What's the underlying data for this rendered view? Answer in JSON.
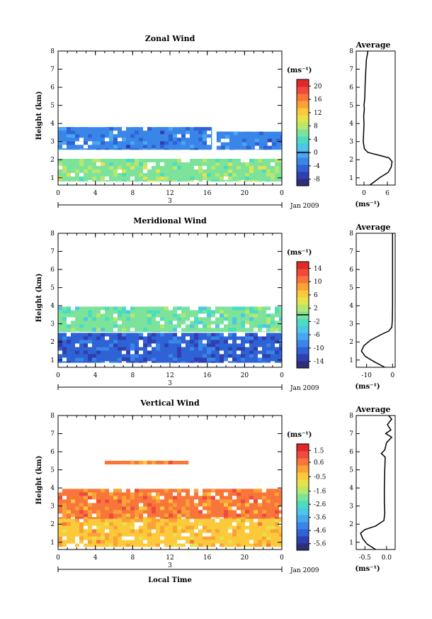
{
  "colors": {
    "scale": [
      "#2e2e7a",
      "#2f3fae",
      "#2f62d4",
      "#3a86e8",
      "#4aa6ee",
      "#4cc7e6",
      "#4cdcc0",
      "#7de39b",
      "#b8e86a",
      "#e6e24c",
      "#fbc93a",
      "#fba236",
      "#f8763a",
      "#f04a3e",
      "#e02a2a"
    ]
  },
  "chart_data": [
    {
      "type": "heatmap",
      "title": "Zonal Wind",
      "ylabel": "Height (km)",
      "x_ticks": [
        "0",
        "4",
        "8",
        "12",
        "16",
        "20",
        "0"
      ],
      "y_ticks": [
        "1",
        "2",
        "3",
        "4",
        "5",
        "6",
        "7",
        "8"
      ],
      "xlim": [
        0,
        24
      ],
      "ylim": [
        0.6,
        8
      ],
      "date_marker": "3",
      "date_label": "Jan 2009",
      "colorbar": {
        "unit": "(ms⁻¹)",
        "ticks": [
          "20",
          "16",
          "12",
          "8",
          "4",
          "0",
          "-4",
          "-8"
        ],
        "range": [
          -10,
          22
        ],
        "line_value": 0
      },
      "bands": [
        {
          "x": [
            0,
            24
          ],
          "y": [
            0.8,
            2.05
          ],
          "value": 7
        },
        {
          "x": [
            0,
            16.5
          ],
          "y": [
            2.55,
            3.8
          ],
          "value": -3
        },
        {
          "x": [
            17,
            24
          ],
          "y": [
            2.55,
            3.55
          ],
          "value": -3
        }
      ],
      "average": {
        "title": "Average",
        "x_ticks": [
          "0",
          "6"
        ],
        "xlim": [
          -2,
          8
        ],
        "xlabel": "(ms⁻¹)",
        "profile": [
          [
            0.6,
            1.5
          ],
          [
            1.0,
            4.0
          ],
          [
            1.3,
            6.2
          ],
          [
            1.6,
            7.0
          ],
          [
            1.9,
            7.2
          ],
          [
            2.1,
            6.4
          ],
          [
            2.25,
            3.8
          ],
          [
            2.4,
            1.0
          ],
          [
            2.6,
            0.1
          ],
          [
            3.0,
            -0.2
          ],
          [
            3.5,
            -0.1
          ],
          [
            4.0,
            0.0
          ],
          [
            4.4,
            -0.1
          ],
          [
            4.8,
            0.1
          ],
          [
            5.0,
            0.0
          ],
          [
            5.4,
            0.2
          ],
          [
            6.2,
            0.3
          ],
          [
            7.5,
            0.6
          ],
          [
            8.0,
            1.0
          ]
        ]
      }
    },
    {
      "type": "heatmap",
      "title": "Meridional Wind",
      "ylabel": "Height (km)",
      "x_ticks": [
        "0",
        "4",
        "8",
        "12",
        "16",
        "20",
        "0"
      ],
      "y_ticks": [
        "1",
        "2",
        "3",
        "4",
        "5",
        "6",
        "7",
        "8"
      ],
      "xlim": [
        0,
        24
      ],
      "ylim": [
        0.6,
        8
      ],
      "date_marker": "3",
      "date_label": "Jan 2009",
      "colorbar": {
        "unit": "(ms⁻¹)",
        "ticks": [
          "14",
          "10",
          "6",
          "2",
          "-2",
          "-6",
          "-10",
          "-14"
        ],
        "range": [
          -16,
          16
        ],
        "line_value": 0
      },
      "bands": [
        {
          "x": [
            0,
            24
          ],
          "y": [
            0.85,
            2.5
          ],
          "value": -11
        },
        {
          "x": [
            0,
            24
          ],
          "y": [
            2.55,
            3.95
          ],
          "value": -1
        }
      ],
      "average": {
        "title": "Average",
        "x_ticks": [
          "-10",
          "0"
        ],
        "xlim": [
          -14,
          1
        ],
        "xlabel": "(ms⁻¹)",
        "profile": [
          [
            0.6,
            -3.0
          ],
          [
            0.9,
            -7.0
          ],
          [
            1.2,
            -10.5
          ],
          [
            1.5,
            -12.0
          ],
          [
            1.8,
            -11.0
          ],
          [
            2.1,
            -8.5
          ],
          [
            2.4,
            -4.5
          ],
          [
            2.6,
            -1.5
          ],
          [
            2.8,
            -0.3
          ],
          [
            3.2,
            -0.1
          ],
          [
            4.0,
            0.0
          ],
          [
            5.0,
            0.0
          ],
          [
            6.0,
            0.0
          ],
          [
            7.0,
            0.0
          ],
          [
            8.0,
            0.0
          ]
        ]
      }
    },
    {
      "type": "heatmap",
      "title": "Vertical Wind",
      "ylabel": "Height (km)",
      "xlabel": "Local Time",
      "x_ticks": [
        "0",
        "4",
        "8",
        "12",
        "16",
        "20",
        "0"
      ],
      "y_ticks": [
        "1",
        "2",
        "3",
        "4",
        "5",
        "6",
        "7",
        "8"
      ],
      "xlim": [
        0,
        24
      ],
      "ylim": [
        0.6,
        8
      ],
      "date_marker": "3",
      "date_label": "Jan 2009",
      "colorbar": {
        "unit": "(ms⁻¹)",
        "ticks": [
          "1.5",
          "0.6",
          "-0.5",
          "-1.6",
          "-2.6",
          "-3.6",
          "-4.6",
          "-5.6"
        ],
        "range": [
          -6.1,
          2.0
        ],
        "line_value": null
      },
      "bands": [
        {
          "x": [
            0,
            24
          ],
          "y": [
            0.75,
            2.3
          ],
          "value": -0.3
        },
        {
          "x": [
            0,
            24
          ],
          "y": [
            2.3,
            3.95
          ],
          "value": 0.4
        },
        {
          "x": [
            5,
            14
          ],
          "y": [
            5.3,
            5.5
          ],
          "value": 0.4
        }
      ],
      "average": {
        "title": "Average",
        "x_ticks": [
          "-0.5",
          "0.0"
        ],
        "xlim": [
          -0.7,
          0.2
        ],
        "xlabel": "(ms⁻¹)",
        "profile": [
          [
            0.6,
            -0.25
          ],
          [
            0.9,
            -0.45
          ],
          [
            1.2,
            -0.55
          ],
          [
            1.5,
            -0.6
          ],
          [
            1.7,
            -0.5
          ],
          [
            1.9,
            -0.25
          ],
          [
            2.2,
            -0.06
          ],
          [
            2.6,
            -0.04
          ],
          [
            3.2,
            -0.05
          ],
          [
            4.0,
            -0.05
          ],
          [
            5.0,
            -0.04
          ],
          [
            5.7,
            -0.03
          ],
          [
            5.9,
            -0.12
          ],
          [
            6.1,
            -0.04
          ],
          [
            6.5,
            0.0
          ],
          [
            6.8,
            0.12
          ],
          [
            7.0,
            -0.02
          ],
          [
            7.2,
            0.1
          ],
          [
            7.5,
            0.02
          ],
          [
            7.8,
            0.12
          ],
          [
            8.0,
            0.05
          ]
        ]
      }
    }
  ]
}
